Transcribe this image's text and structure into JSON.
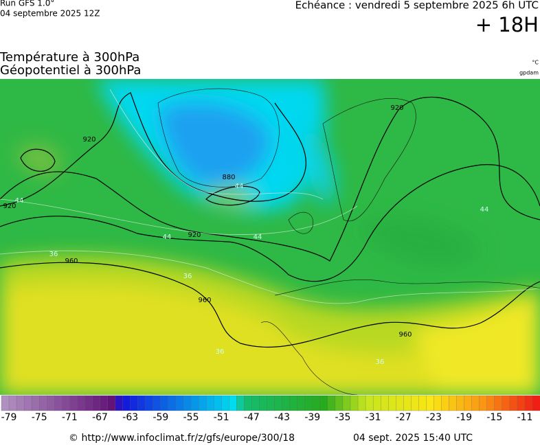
{
  "header": {
    "run": "Run GFS 1.0°",
    "run_date": "04 septembre 2025 12Z",
    "echeance": "Echéance : vendredi 5 septembre 2025 6h UTC",
    "lead": "+ 18H",
    "title_1": "Température à 300hPa",
    "title_2": "Géopotentiel à 300hPa",
    "unit_1": "°C",
    "unit_2": "gpdam"
  },
  "map": {
    "contour_labels": [
      "920",
      "920",
      "920",
      "880",
      "920",
      "960",
      "960",
      "960",
      "44",
      "44",
      "44",
      "44",
      "44",
      "36",
      "36",
      "36",
      "36"
    ]
  },
  "colorbar": {
    "labels": [
      -79,
      -75,
      -71,
      -67,
      -63,
      -59,
      -55,
      -51,
      -47,
      -43,
      -39,
      -35,
      -31,
      -27,
      -23,
      -19,
      -15,
      -11
    ]
  },
  "footer": {
    "url": "© http://www.infoclimat.fr/z/gfs/europe/300/18",
    "timestamp": "04 sept. 2025 15:40 UTC"
  }
}
